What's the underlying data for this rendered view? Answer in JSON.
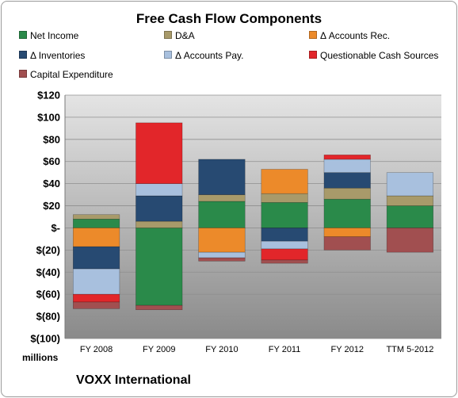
{
  "chart_data": {
    "type": "bar",
    "stacked": true,
    "title": "Free Cash Flow Components",
    "company": "VOXX International",
    "ylabel": "millions",
    "ylim": [
      -100,
      120
    ],
    "yticks": [
      120,
      100,
      80,
      60,
      40,
      20,
      0,
      -20,
      -40,
      -60,
      -80,
      -100
    ],
    "ytick_labels": [
      "$120",
      "$100",
      "$80",
      "$60",
      "$40",
      "$20",
      "$-",
      "$(20)",
      "$(40)",
      "$(60)",
      "$(80)",
      "$(100)"
    ],
    "categories": [
      "FY 2008",
      "FY 2009",
      "FY 2010",
      "FY 2011",
      "FY 2012",
      "TTM 5-2012"
    ],
    "legend_position": "top",
    "grid": true,
    "series": [
      {
        "name": "Net Income",
        "color": "#2a8a4a",
        "values": [
          8,
          -70,
          24,
          23,
          26,
          20
        ]
      },
      {
        "name": "D&A",
        "color": "#a89a6a",
        "values": [
          4,
          6,
          6,
          8,
          10,
          9
        ]
      },
      {
        "name": "Δ Accounts Rec.",
        "color": "#ec8a2a",
        "values": [
          -17,
          0,
          -22,
          22,
          -8,
          0
        ]
      },
      {
        "name": "Δ Inventories",
        "color": "#274a72",
        "values": [
          -20,
          23,
          32,
          -12,
          14,
          0
        ]
      },
      {
        "name": "Δ Accounts Pay.",
        "color": "#a8c0de",
        "values": [
          -23,
          11,
          -5,
          -7,
          12,
          21
        ]
      },
      {
        "name": "Questionable Cash Sources",
        "color": "#e2262a",
        "values": [
          -7,
          55,
          0,
          -10,
          4,
          0
        ]
      },
      {
        "name": "Capital Expenditure",
        "color": "#a14f50",
        "values": [
          -6,
          -4,
          -3,
          -3,
          -12,
          -22
        ]
      }
    ]
  }
}
